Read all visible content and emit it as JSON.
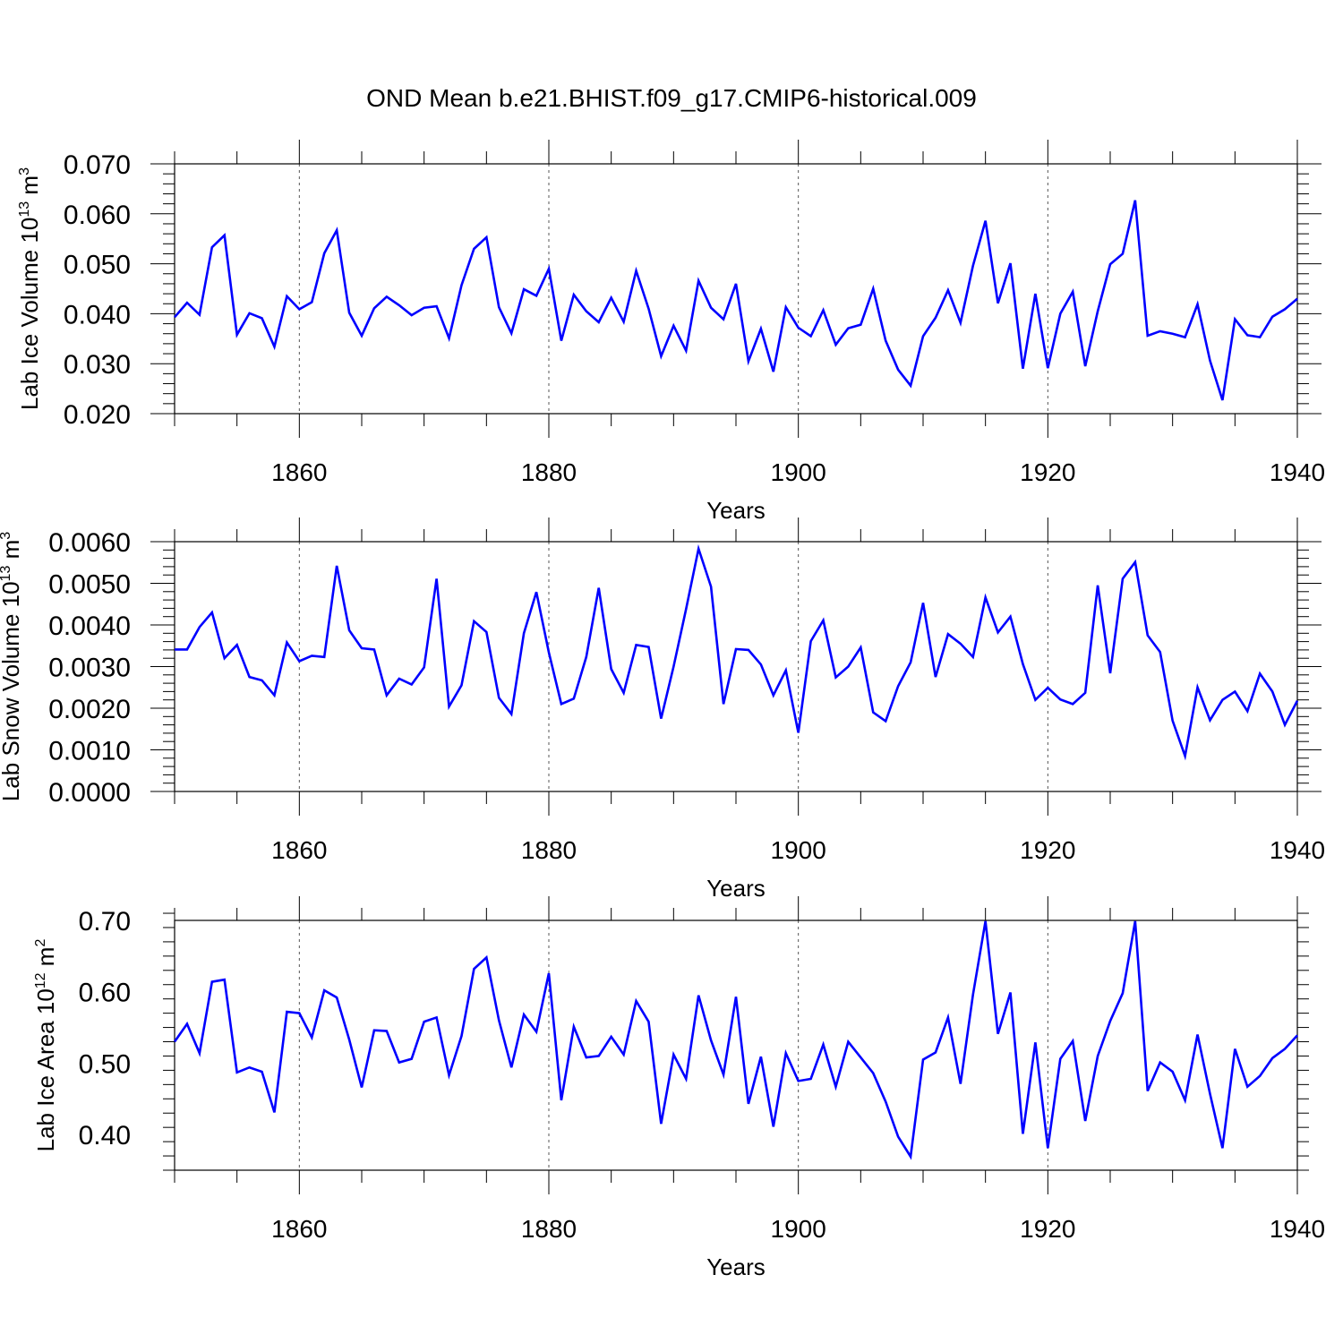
{
  "title": "OND Mean b.e21.BHIST.f09_g17.CMIP6-historical.009",
  "colors": {
    "line": "#0000ff",
    "axis": "#000000",
    "grid": "#555555"
  },
  "chart_data": [
    {
      "type": "line",
      "xlabel": "Years",
      "ylabel_main": "Lab Ice Volume 10",
      "ylabel_sup": "13",
      "ylabel_unit": "m",
      "ylabel_unit_sup": "3",
      "xlim": [
        1850,
        1940
      ],
      "ylim": [
        0.02,
        0.07
      ],
      "x_ticks": [
        1860,
        1880,
        1900,
        1920,
        1940
      ],
      "y_ticks": [
        0.02,
        0.03,
        0.04,
        0.05,
        0.06,
        0.07
      ],
      "y_tick_labels": [
        "0.020",
        "0.030",
        "0.040",
        "0.050",
        "0.060",
        "0.070"
      ],
      "series": [
        {
          "name": "Lab Ice Volume",
          "start_year": 1850,
          "values": [
            0.0393,
            0.0422,
            0.0398,
            0.0533,
            0.0557,
            0.0358,
            0.0401,
            0.0391,
            0.0334,
            0.0435,
            0.0409,
            0.0423,
            0.0521,
            0.0567,
            0.0402,
            0.0356,
            0.0411,
            0.0434,
            0.0417,
            0.0397,
            0.0412,
            0.0415,
            0.0351,
            0.0457,
            0.053,
            0.0553,
            0.0413,
            0.0361,
            0.0449,
            0.0436,
            0.049,
            0.0346,
            0.0438,
            0.0405,
            0.0383,
            0.0432,
            0.0384,
            0.0486,
            0.041,
            0.0315,
            0.0376,
            0.0326,
            0.0466,
            0.0412,
            0.0389,
            0.046,
            0.0305,
            0.037,
            0.0284,
            0.0413,
            0.0372,
            0.0355,
            0.0407,
            0.0338,
            0.0371,
            0.0378,
            0.045,
            0.0346,
            0.0288,
            0.0256,
            0.0355,
            0.0392,
            0.0447,
            0.0382,
            0.0496,
            0.0586,
            0.0421,
            0.0501,
            0.029,
            0.044,
            0.0291,
            0.04,
            0.0444,
            0.0295,
            0.0405,
            0.0499,
            0.052,
            0.0627,
            0.0356,
            0.0365,
            0.036,
            0.0353,
            0.0419,
            0.0306,
            0.0227,
            0.0389,
            0.0357,
            0.0353,
            0.0394,
            0.0409,
            0.043
          ]
        }
      ]
    },
    {
      "type": "line",
      "xlabel": "Years",
      "ylabel_main": "Lab Snow Volume 10",
      "ylabel_sup": "13",
      "ylabel_unit": "m",
      "ylabel_unit_sup": "3",
      "xlim": [
        1850,
        1940
      ],
      "ylim": [
        0.0,
        0.006
      ],
      "x_ticks": [
        1860,
        1880,
        1900,
        1920,
        1940
      ],
      "y_ticks": [
        0.0,
        0.001,
        0.002,
        0.003,
        0.004,
        0.005,
        0.006
      ],
      "y_tick_labels": [
        "0.0000",
        "0.0010",
        "0.0020",
        "0.0030",
        "0.0040",
        "0.0050",
        "0.0060"
      ],
      "series": [
        {
          "name": "Lab Snow Volume",
          "start_year": 1850,
          "values": [
            0.00341,
            0.00341,
            0.00395,
            0.0043,
            0.0032,
            0.00352,
            0.00275,
            0.00267,
            0.00231,
            0.00358,
            0.00313,
            0.00326,
            0.00323,
            0.00542,
            0.00387,
            0.00344,
            0.00341,
            0.00231,
            0.00271,
            0.00257,
            0.00298,
            0.00511,
            0.00204,
            0.00255,
            0.00409,
            0.00383,
            0.00225,
            0.00186,
            0.0038,
            0.00479,
            0.00334,
            0.0021,
            0.00223,
            0.00323,
            0.00489,
            0.00294,
            0.00237,
            0.00352,
            0.00347,
            0.00175,
            0.003,
            0.00438,
            0.00583,
            0.00492,
            0.0021,
            0.00342,
            0.0034,
            0.00305,
            0.00231,
            0.00291,
            0.00141,
            0.00361,
            0.00411,
            0.00274,
            0.003,
            0.00346,
            0.0019,
            0.00169,
            0.00253,
            0.0031,
            0.00453,
            0.00275,
            0.00378,
            0.00355,
            0.00323,
            0.00466,
            0.00382,
            0.0042,
            0.00306,
            0.0022,
            0.00249,
            0.00221,
            0.0021,
            0.00237,
            0.00495,
            0.00284,
            0.00511,
            0.00551,
            0.00375,
            0.00335,
            0.0017,
            0.00085,
            0.0025,
            0.00171,
            0.0022,
            0.0024,
            0.00193,
            0.00283,
            0.0024,
            0.0016,
            0.00218
          ]
        }
      ]
    },
    {
      "type": "line",
      "xlabel": "Years",
      "ylabel_main": "Lab Ice Area 10",
      "ylabel_sup": "12",
      "ylabel_unit": "m",
      "ylabel_unit_sup": "2",
      "xlim": [
        1850,
        1940
      ],
      "ylim": [
        0.35,
        0.7
      ],
      "x_ticks": [
        1860,
        1880,
        1900,
        1920,
        1940
      ],
      "y_ticks": [
        0.4,
        0.5,
        0.6,
        0.7
      ],
      "y_tick_labels": [
        "0.40",
        "0.50",
        "0.60",
        "0.70"
      ],
      "series": [
        {
          "name": "Lab Ice Area",
          "start_year": 1850,
          "values": [
            0.53,
            0.555,
            0.514,
            0.614,
            0.617,
            0.487,
            0.494,
            0.488,
            0.431,
            0.572,
            0.57,
            0.536,
            0.602,
            0.592,
            0.533,
            0.466,
            0.546,
            0.545,
            0.501,
            0.506,
            0.558,
            0.564,
            0.483,
            0.538,
            0.632,
            0.648,
            0.56,
            0.494,
            0.568,
            0.544,
            0.626,
            0.448,
            0.551,
            0.508,
            0.51,
            0.537,
            0.512,
            0.587,
            0.558,
            0.415,
            0.512,
            0.478,
            0.595,
            0.532,
            0.484,
            0.593,
            0.443,
            0.509,
            0.411,
            0.514,
            0.475,
            0.478,
            0.526,
            0.467,
            0.53,
            0.508,
            0.486,
            0.446,
            0.397,
            0.369,
            0.505,
            0.515,
            0.564,
            0.471,
            0.596,
            0.699,
            0.541,
            0.599,
            0.401,
            0.529,
            0.381,
            0.506,
            0.531,
            0.419,
            0.51,
            0.559,
            0.598,
            0.699,
            0.461,
            0.501,
            0.488,
            0.448,
            0.54,
            0.457,
            0.381,
            0.52,
            0.467,
            0.482,
            0.507,
            0.52,
            0.539
          ]
        }
      ]
    }
  ]
}
